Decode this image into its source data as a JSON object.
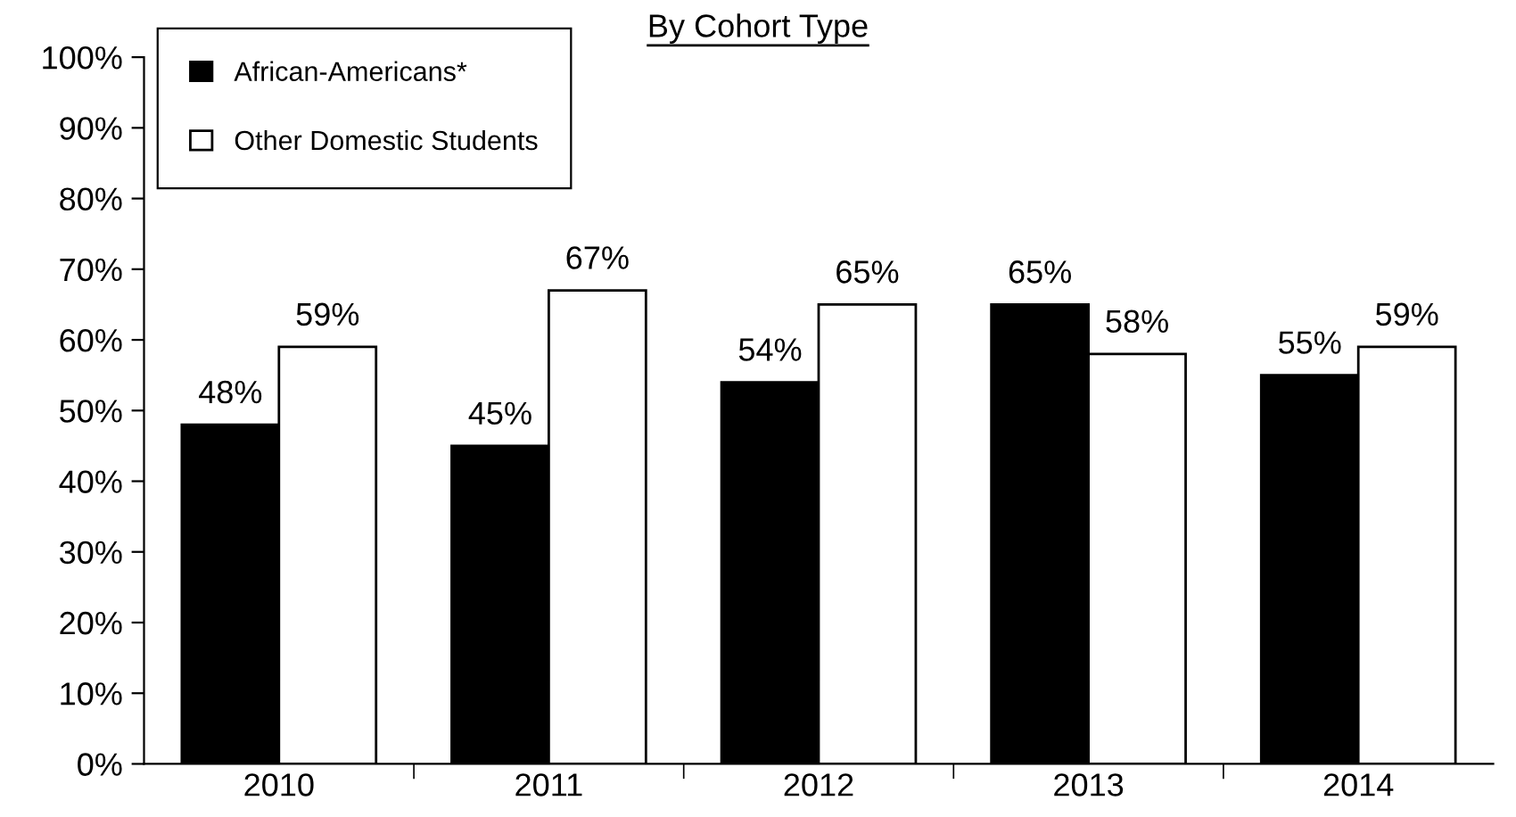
{
  "chart_data": {
    "type": "bar",
    "title": "By Cohort Type",
    "categories": [
      "2010",
      "2011",
      "2012",
      "2013",
      "2014"
    ],
    "series": [
      {
        "name": "African-Americans*",
        "color": "#000000",
        "values": [
          48,
          45,
          54,
          65,
          55
        ],
        "value_labels": [
          "48%",
          "45%",
          "54%",
          "65%",
          "55%"
        ]
      },
      {
        "name": "Other Domestic Students",
        "color": "#ffffff",
        "values": [
          59,
          67,
          65,
          58,
          59
        ],
        "value_labels": [
          "59%",
          "67%",
          "65%",
          "58%",
          "59%"
        ]
      }
    ],
    "ylim": [
      0,
      100
    ],
    "yticks": [
      {
        "value": 0,
        "label": "0%"
      },
      {
        "value": 10,
        "label": "10%"
      },
      {
        "value": 20,
        "label": "20%"
      },
      {
        "value": 30,
        "label": "30%"
      },
      {
        "value": 40,
        "label": "40%"
      },
      {
        "value": 50,
        "label": "50%"
      },
      {
        "value": 60,
        "label": "60%"
      },
      {
        "value": 70,
        "label": "70%"
      },
      {
        "value": 80,
        "label": "80%"
      },
      {
        "value": 90,
        "label": "90%"
      },
      {
        "value": 100,
        "label": "100%"
      }
    ],
    "grid": false,
    "legend": "top left"
  }
}
